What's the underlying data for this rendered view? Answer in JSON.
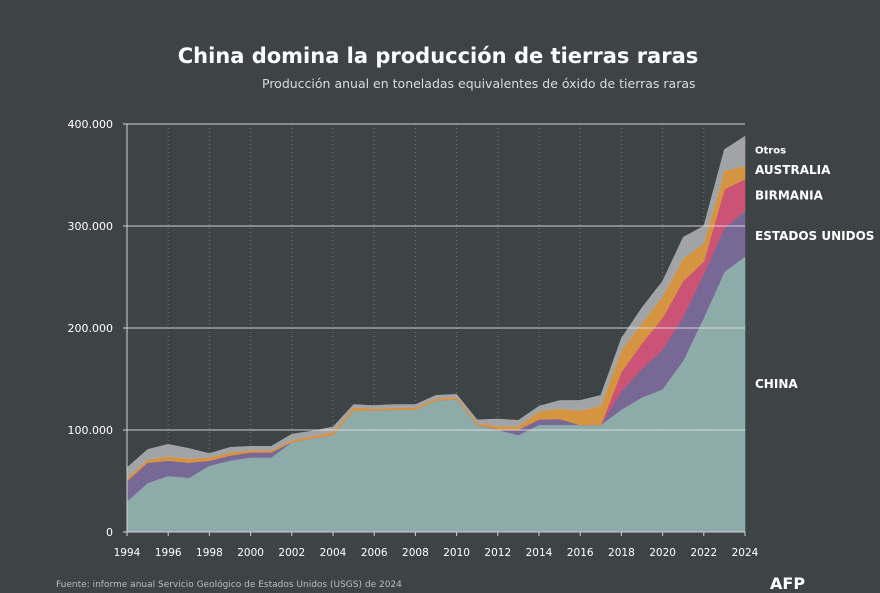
{
  "title": "China domina la producción de tierras raras",
  "subtitle": "Producción anual en toneladas equivalentes de óxido de tierras raras",
  "source": "Fuente: informe anual Servicio Geológico de Estados Unidos (USGS) de 2024",
  "logo": "AFP",
  "chart_data": {
    "type": "area",
    "stacked": true,
    "x": [
      1994,
      1995,
      1996,
      1997,
      1998,
      1999,
      2000,
      2001,
      2002,
      2003,
      2004,
      2005,
      2006,
      2007,
      2008,
      2009,
      2010,
      2011,
      2012,
      2013,
      2014,
      2015,
      2016,
      2017,
      2018,
      2019,
      2020,
      2021,
      2022,
      2023,
      2024
    ],
    "series": [
      {
        "name": "CHINA",
        "color": "#92b4b2",
        "values": [
          30000,
          48000,
          55000,
          53000,
          65000,
          70000,
          73000,
          73000,
          88000,
          92000,
          95000,
          119000,
          119000,
          120000,
          120000,
          129000,
          130000,
          105000,
          100000,
          95000,
          105000,
          105000,
          105000,
          105000,
          120000,
          132000,
          140000,
          168000,
          210000,
          255000,
          270000
        ]
      },
      {
        "name": "ESTADOS UNIDOS",
        "color": "#7d6b9c",
        "values": [
          20000,
          20000,
          15000,
          15000,
          5000,
          5000,
          5000,
          5000,
          0,
          0,
          0,
          0,
          0,
          0,
          0,
          0,
          0,
          0,
          800,
          5500,
          5400,
          5900,
          0,
          0,
          18000,
          28000,
          39000,
          43000,
          43000,
          43000,
          45000
        ]
      },
      {
        "name": "BIRMANIA",
        "color": "#d7557a",
        "values": [
          0,
          0,
          0,
          0,
          0,
          0,
          0,
          0,
          0,
          0,
          0,
          0,
          0,
          0,
          0,
          0,
          0,
          0,
          0,
          0,
          0,
          0,
          0,
          0,
          19000,
          25000,
          31000,
          35000,
          12000,
          38000,
          31000
        ]
      },
      {
        "name": "AUSTRALIA",
        "color": "#e29b3f",
        "values": [
          3000,
          3000,
          4000,
          4000,
          3000,
          3000,
          2000,
          2000,
          2000,
          2000,
          3000,
          3000,
          2000,
          2000,
          2000,
          2000,
          2000,
          2000,
          3000,
          3000,
          8000,
          10000,
          14000,
          19000,
          21000,
          20000,
          21000,
          22000,
          18000,
          18000,
          13000
        ]
      },
      {
        "name": "Otros",
        "color": "#a9abae",
        "values": [
          10000,
          10000,
          12000,
          10000,
          4000,
          5000,
          4000,
          4000,
          6000,
          5000,
          5000,
          3000,
          3000,
          3000,
          3000,
          3000,
          3000,
          3000,
          7000,
          6000,
          5000,
          8000,
          10000,
          10000,
          12000,
          15000,
          15000,
          21000,
          17000,
          21000,
          29000
        ]
      }
    ],
    "ylim": [
      0,
      400000
    ],
    "yticks": [
      0,
      100000,
      200000,
      300000,
      400000
    ],
    "ytick_labels": [
      "0",
      "100.000",
      "200.000",
      "300.000",
      "400.000"
    ],
    "xticks": [
      1994,
      1996,
      1998,
      2000,
      2002,
      2004,
      2006,
      2008,
      2010,
      2012,
      2014,
      2016,
      2018,
      2020,
      2022,
      2024
    ],
    "label_positions": {
      "CHINA": 145000,
      "ESTADOS UNIDOS": 290000,
      "BIRMANIA": 330000,
      "AUSTRALIA": 355000,
      "Otros": 375000
    },
    "grid": true
  }
}
